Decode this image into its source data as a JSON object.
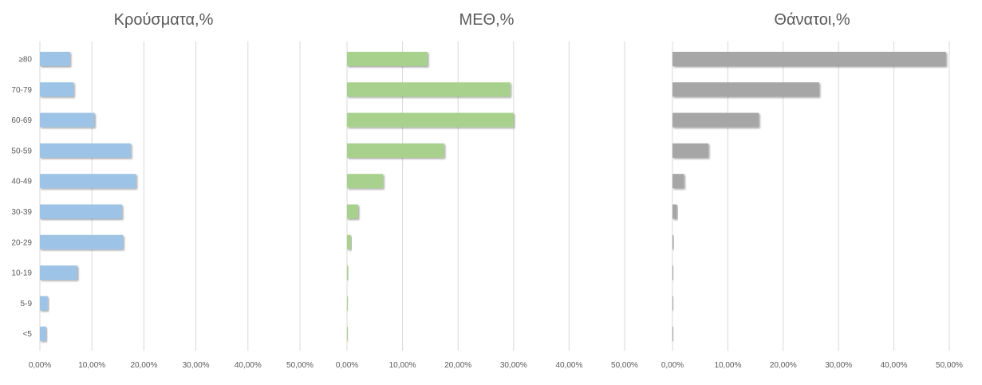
{
  "chart_data": {
    "type": "bar",
    "orientation": "horizontal",
    "categories": [
      "≥80",
      "70-79",
      "60-69",
      "50-59",
      "40-49",
      "30-39",
      "20-29",
      "10-19",
      "5-9",
      "<5"
    ],
    "x_tick_labels": [
      "0,00%",
      "10,00%",
      "20,00%",
      "30,00%",
      "40,00%",
      "50,00%"
    ],
    "xlim": [
      0,
      50
    ],
    "grid": true,
    "panels": [
      {
        "title": "Κρούσματα,%",
        "color": "#9dc3e6",
        "values": [
          5.8,
          6.5,
          10.5,
          17.5,
          18.5,
          15.8,
          16.0,
          7.2,
          1.5,
          1.2
        ]
      },
      {
        "title": "ΜΕΘ,%",
        "color": "#a9d18e",
        "values": [
          14.5,
          29.4,
          30.0,
          17.5,
          6.5,
          2.0,
          0.7,
          0.2,
          0.1,
          0.1
        ]
      },
      {
        "title": "Θάνατοι,%",
        "color": "#a6a6a6",
        "values": [
          49.4,
          26.5,
          15.6,
          6.5,
          2.1,
          0.8,
          0.2,
          0.1,
          0.0,
          0.0
        ]
      }
    ]
  }
}
